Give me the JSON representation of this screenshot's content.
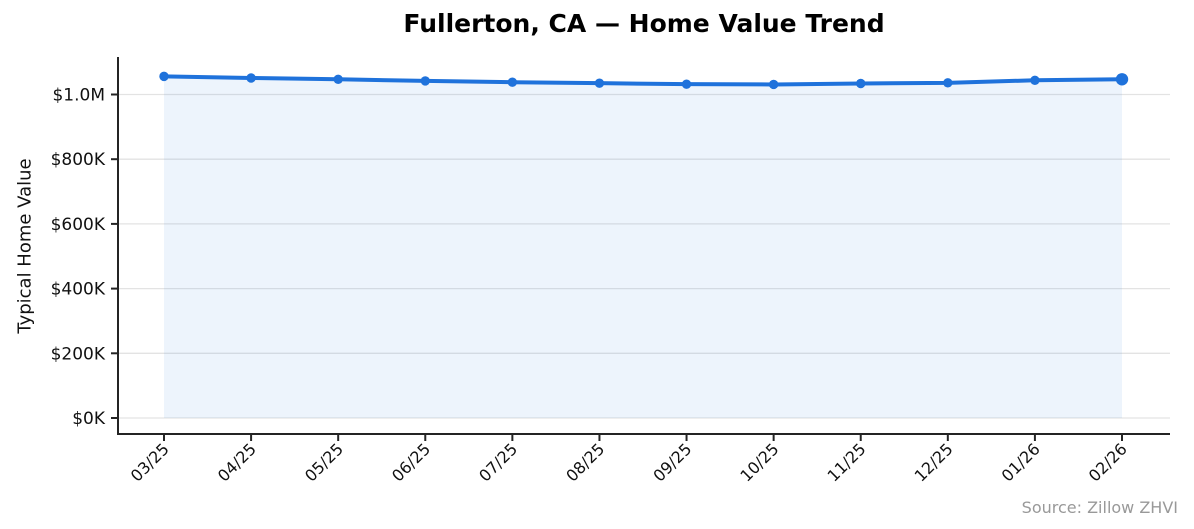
{
  "page": {
    "background": "#ffffff"
  },
  "header": {
    "title": "Fullerton, CA — Home Value Trend"
  },
  "footer": {
    "source_note": "Source: Zillow ZHVI"
  },
  "chart_data": {
    "type": "line",
    "title": "Fullerton, CA — Home Value Trend",
    "xlabel": "",
    "ylabel": "Typical Home Value",
    "categories": [
      "03/25",
      "04/25",
      "05/25",
      "06/25",
      "07/25",
      "08/25",
      "09/25",
      "10/25",
      "11/25",
      "12/25",
      "01/26",
      "02/26"
    ],
    "series": [
      {
        "name": "Typical Home Value",
        "values": [
          1056000,
          1051000,
          1047000,
          1042000,
          1038000,
          1035000,
          1032000,
          1031000,
          1034000,
          1036000,
          1044000,
          1047000
        ]
      }
    ],
    "y_ticks": [
      0,
      200000,
      400000,
      600000,
      800000,
      1000000
    ],
    "y_tick_labels": [
      "$0K",
      "$200K",
      "$400K",
      "$600K",
      "$800K",
      "$1.0M"
    ],
    "ylim": [
      0,
      1115000
    ],
    "x_tick_rotation": 45,
    "grid": "horizontal",
    "legend": "none",
    "area_fill": true,
    "source": "Source: Zillow ZHVI",
    "colors": {
      "line": "#1f72db",
      "marker": "#1f72db",
      "fill": "rgba(31,114,219,0.08)",
      "grid": "#e3e3e3",
      "axis": "#242424",
      "tick_text": "#111111",
      "muted_text": "#999999"
    }
  }
}
